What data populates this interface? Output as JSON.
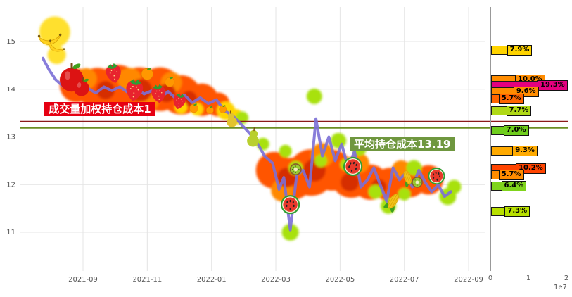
{
  "app": {
    "type": "stock-chip-distribution-chart"
  },
  "chart_data": {
    "type": "line",
    "title": "",
    "x_ticks": [
      "2021-09",
      "2021-11",
      "2022-01",
      "2022-03",
      "2022-05",
      "2022-07",
      "2022-09"
    ],
    "y_ticks": [
      "11",
      "12",
      "13",
      "14",
      "15"
    ],
    "ylim": [
      10.2,
      15.7
    ],
    "grid": true,
    "legend": "none",
    "series": [
      {
        "name": "price",
        "color": "#7b6fd6",
        "points": [
          [
            -1.25,
            14.65
          ],
          [
            -1.05,
            14.4
          ],
          [
            -0.85,
            14.2
          ],
          [
            -0.6,
            14.05
          ],
          [
            -0.35,
            14.18
          ],
          [
            -0.1,
            13.98
          ],
          [
            0.15,
            14.02
          ],
          [
            0.4,
            13.92
          ],
          [
            0.65,
            14.05
          ],
          [
            0.9,
            13.97
          ],
          [
            1.15,
            14.05
          ],
          [
            1.4,
            13.93
          ],
          [
            1.65,
            14.02
          ],
          [
            1.9,
            13.9
          ],
          [
            2.15,
            13.97
          ],
          [
            2.4,
            13.82
          ],
          [
            2.65,
            13.95
          ],
          [
            2.9,
            13.8
          ],
          [
            3.15,
            13.88
          ],
          [
            3.4,
            13.72
          ],
          [
            3.65,
            13.82
          ],
          [
            3.9,
            13.7
          ],
          [
            4.15,
            13.78
          ],
          [
            4.4,
            13.55
          ],
          [
            4.65,
            13.45
          ],
          [
            4.9,
            13.28
          ],
          [
            5.15,
            13.1
          ],
          [
            5.4,
            12.9
          ],
          [
            5.65,
            12.6
          ],
          [
            5.9,
            12.45
          ],
          [
            6.1,
            11.9
          ],
          [
            6.25,
            12.15
          ],
          [
            6.45,
            11.05
          ],
          [
            6.65,
            12.2
          ],
          [
            6.85,
            12.3
          ],
          [
            7.05,
            11.95
          ],
          [
            7.25,
            13.38
          ],
          [
            7.45,
            12.6
          ],
          [
            7.65,
            13.0
          ],
          [
            7.85,
            12.5
          ],
          [
            8.05,
            12.85
          ],
          [
            8.25,
            12.35
          ],
          [
            8.45,
            12.7
          ],
          [
            8.65,
            11.95
          ],
          [
            8.85,
            12.1
          ],
          [
            9.05,
            12.35
          ],
          [
            9.25,
            12.0
          ],
          [
            9.45,
            11.65
          ],
          [
            9.65,
            12.35
          ],
          [
            9.85,
            12.1
          ],
          [
            10.05,
            12.25
          ],
          [
            10.25,
            11.95
          ],
          [
            10.45,
            12.3
          ],
          [
            10.65,
            12.05
          ],
          [
            10.85,
            11.85
          ],
          [
            11.05,
            12.0
          ],
          [
            11.25,
            11.75
          ],
          [
            11.45,
            11.85
          ]
        ]
      }
    ],
    "hlines": [
      {
        "name": "成交量加权持仓成本",
        "value": 13.32,
        "color": "#8b1a1a"
      },
      {
        "name": "平均持仓成本",
        "value": 13.19,
        "color": "#6b8e23"
      }
    ],
    "annotations": {
      "vwap_label": {
        "text": "成交量加权持仓成本1",
        "bg": "#e60012",
        "x_month": -1.2,
        "price": 13.73
      },
      "avg_label": {
        "text": "平均持仓成本13.19",
        "bg": "#6f973f",
        "x_month": 8.3,
        "price": 12.99
      }
    },
    "right_panel": {
      "type": "bar-horizontal",
      "x_ticks": [
        "0",
        "1",
        "2"
      ],
      "xlim": [
        0,
        2
      ],
      "scale_note": "1e7",
      "bars": [
        {
          "label": "7.9%",
          "pct": 7.9,
          "price": 14.81,
          "color": "#ffd400"
        },
        {
          "label": "10.0%",
          "pct": 10.0,
          "price": 14.2,
          "color": "#ff8c00"
        },
        {
          "label": "19.3%",
          "pct": 19.3,
          "price": 14.08,
          "color": "#e4007f"
        },
        {
          "label": "9.6%",
          "pct": 9.6,
          "price": 13.95,
          "color": "#ff8c00"
        },
        {
          "label": "5.7%",
          "pct": 5.7,
          "price": 13.79,
          "color": "#ff6600"
        },
        {
          "label": "7.7%",
          "pct": 7.7,
          "price": 13.54,
          "color": "#b0d916"
        },
        {
          "label": "7.0%",
          "pct": 7.0,
          "price": 13.14,
          "color": "#6fce1d"
        },
        {
          "label": "9.3%",
          "pct": 9.3,
          "price": 12.71,
          "color": "#ffaa00"
        },
        {
          "label": "10.2%",
          "pct": 10.2,
          "price": 12.34,
          "color": "#ff4400"
        },
        {
          "label": "5.7%",
          "pct": 5.7,
          "price": 12.2,
          "color": "#ff8c00"
        },
        {
          "label": "6.4%",
          "pct": 6.4,
          "price": 11.97,
          "color": "#7fd41c"
        },
        {
          "label": "7.3%",
          "pct": 7.3,
          "price": 11.44,
          "color": "#b8e000"
        }
      ]
    },
    "decorations": {
      "blobs": [
        [
          -0.88,
          15.2,
          22,
          "#ffe02e"
        ],
        [
          -0.82,
          14.72,
          13,
          "#ffe02e"
        ],
        [
          -0.2,
          14.08,
          24,
          "#ff5400"
        ],
        [
          0.45,
          14.02,
          29,
          "#ff5400"
        ],
        [
          1.1,
          14.05,
          31,
          "#ff5400"
        ],
        [
          1.75,
          13.97,
          33,
          "#ff5400"
        ],
        [
          2.4,
          14.0,
          31,
          "#ff5400"
        ],
        [
          3.05,
          13.88,
          28,
          "#ff5400"
        ],
        [
          3.7,
          13.78,
          23,
          "#ff5400"
        ],
        [
          4.2,
          13.68,
          17,
          "#ff5400"
        ],
        [
          0.1,
          14.22,
          15,
          "#ff8800"
        ],
        [
          1.45,
          14.2,
          17,
          "#ff8800"
        ],
        [
          2.75,
          14.14,
          15,
          "#ff8800"
        ],
        [
          2.05,
          13.74,
          14,
          "#ff8800"
        ],
        [
          0.7,
          13.98,
          13,
          "#d62f00"
        ],
        [
          1.8,
          13.98,
          16,
          "#d62f00"
        ],
        [
          2.6,
          13.92,
          13,
          "#d62f00"
        ],
        [
          3.3,
          13.8,
          11,
          "#d62f00"
        ],
        [
          4.45,
          13.55,
          13,
          "#ffd400"
        ],
        [
          4.75,
          13.42,
          11,
          "#ffd400"
        ],
        [
          3.55,
          13.58,
          9,
          "#ffd400"
        ],
        [
          3.05,
          13.62,
          9,
          "#ffd400"
        ],
        [
          5.95,
          12.3,
          26,
          "#ff5400"
        ],
        [
          6.5,
          12.12,
          30,
          "#ff5400"
        ],
        [
          7.1,
          12.25,
          33,
          "#ff5400"
        ],
        [
          7.75,
          12.3,
          29,
          "#ff5400"
        ],
        [
          8.35,
          12.15,
          29,
          "#ff5400"
        ],
        [
          8.95,
          12.05,
          25,
          "#ff5400"
        ],
        [
          9.55,
          12.0,
          24,
          "#ff5400"
        ],
        [
          10.15,
          12.1,
          25,
          "#ff5400"
        ],
        [
          10.75,
          12.1,
          21,
          "#ff5400"
        ],
        [
          6.2,
          11.88,
          16,
          "#ff8800"
        ],
        [
          7.45,
          12.62,
          17,
          "#ff8800"
        ],
        [
          8.6,
          12.45,
          14,
          "#ff8800"
        ],
        [
          9.9,
          12.32,
          13,
          "#ff8800"
        ],
        [
          6.35,
          12.15,
          14,
          "#d62f00"
        ],
        [
          7.2,
          12.3,
          16,
          "#d62f00"
        ],
        [
          8.3,
          12.05,
          13,
          "#d62f00"
        ],
        [
          9.2,
          11.95,
          11,
          "#d62f00"
        ],
        [
          4.95,
          13.4,
          9,
          "#a8e10e"
        ],
        [
          7.2,
          13.85,
          11,
          "#a8e10e"
        ],
        [
          5.6,
          12.85,
          9,
          "#a8e10e"
        ],
        [
          7.4,
          12.5,
          9,
          "#a8e10e"
        ],
        [
          7.95,
          12.92,
          11,
          "#a8e10e"
        ],
        [
          6.62,
          12.35,
          10,
          "#a8e10e"
        ],
        [
          6.45,
          11.0,
          12,
          "#a8e10e"
        ],
        [
          8.6,
          12.75,
          10,
          "#a8e10e"
        ],
        [
          9.1,
          11.85,
          10,
          "#a8e10e"
        ],
        [
          9.5,
          11.55,
          11,
          "#a8e10e"
        ],
        [
          10.3,
          12.35,
          11,
          "#a8e10e"
        ],
        [
          11.35,
          11.75,
          12,
          "#a8e10e"
        ],
        [
          11.55,
          11.95,
          10,
          "#a8e10e"
        ],
        [
          8.2,
          12.42,
          9,
          "#a8e10e"
        ],
        [
          6.3,
          12.7,
          9,
          "#a8e10e"
        ],
        [
          10.0,
          11.8,
          9,
          "#a8e10e"
        ]
      ],
      "fruits": [
        {
          "type": "banana",
          "m": -1.05,
          "p": 15.15,
          "s": 34,
          "rot": -20
        },
        {
          "type": "banana",
          "m": -0.8,
          "p": 14.95,
          "s": 26,
          "rot": 15
        },
        {
          "type": "apple",
          "m": -0.35,
          "p": 14.2,
          "s": 40,
          "rot": 0
        },
        {
          "type": "apple",
          "m": -0.05,
          "p": 14.02,
          "s": 26,
          "rot": 10
        },
        {
          "type": "strawberry",
          "m": 0.95,
          "p": 14.35,
          "s": 32,
          "rot": -10
        },
        {
          "type": "strawberry",
          "m": 1.6,
          "p": 14.0,
          "s": 36,
          "rot": 8
        },
        {
          "type": "strawberry",
          "m": 2.35,
          "p": 13.92,
          "s": 30,
          "rot": -6
        },
        {
          "type": "strawberry",
          "m": 3.0,
          "p": 13.76,
          "s": 26,
          "rot": 12
        },
        {
          "type": "orange",
          "m": 2.0,
          "p": 14.32,
          "s": 22,
          "rot": 0
        },
        {
          "type": "orange",
          "m": 2.7,
          "p": 14.15,
          "s": 18,
          "rot": 0
        },
        {
          "type": "orange",
          "m": 3.45,
          "p": 13.6,
          "s": 16,
          "rot": 0
        },
        {
          "type": "orange",
          "m": 3.95,
          "p": 13.56,
          "s": 14,
          "rot": 0
        },
        {
          "type": "orange",
          "m": 4.35,
          "p": 13.58,
          "s": 14,
          "rot": 0
        },
        {
          "type": "pear",
          "m": 4.62,
          "p": 13.38,
          "s": 24,
          "rot": -8,
          "color": "#e3c32e"
        },
        {
          "type": "pear",
          "m": 5.3,
          "p": 13.0,
          "s": 28,
          "rot": 6,
          "color": "#b9cf2e"
        },
        {
          "type": "watermelon",
          "m": 6.45,
          "p": 11.58,
          "s": 34,
          "rot": 0
        },
        {
          "type": "kiwi",
          "m": 6.62,
          "p": 12.32,
          "s": 26,
          "rot": 0
        },
        {
          "type": "watermelon",
          "m": 8.4,
          "p": 12.38,
          "s": 34,
          "rot": 15
        },
        {
          "type": "corn",
          "m": 9.65,
          "p": 11.65,
          "s": 30,
          "rot": 30
        },
        {
          "type": "corn",
          "m": 10.1,
          "p": 12.15,
          "s": 26,
          "rot": -20
        },
        {
          "type": "kiwi",
          "m": 10.4,
          "p": 12.05,
          "s": 24,
          "rot": 0
        },
        {
          "type": "watermelon",
          "m": 11.0,
          "p": 12.18,
          "s": 30,
          "rot": -10
        }
      ]
    }
  }
}
